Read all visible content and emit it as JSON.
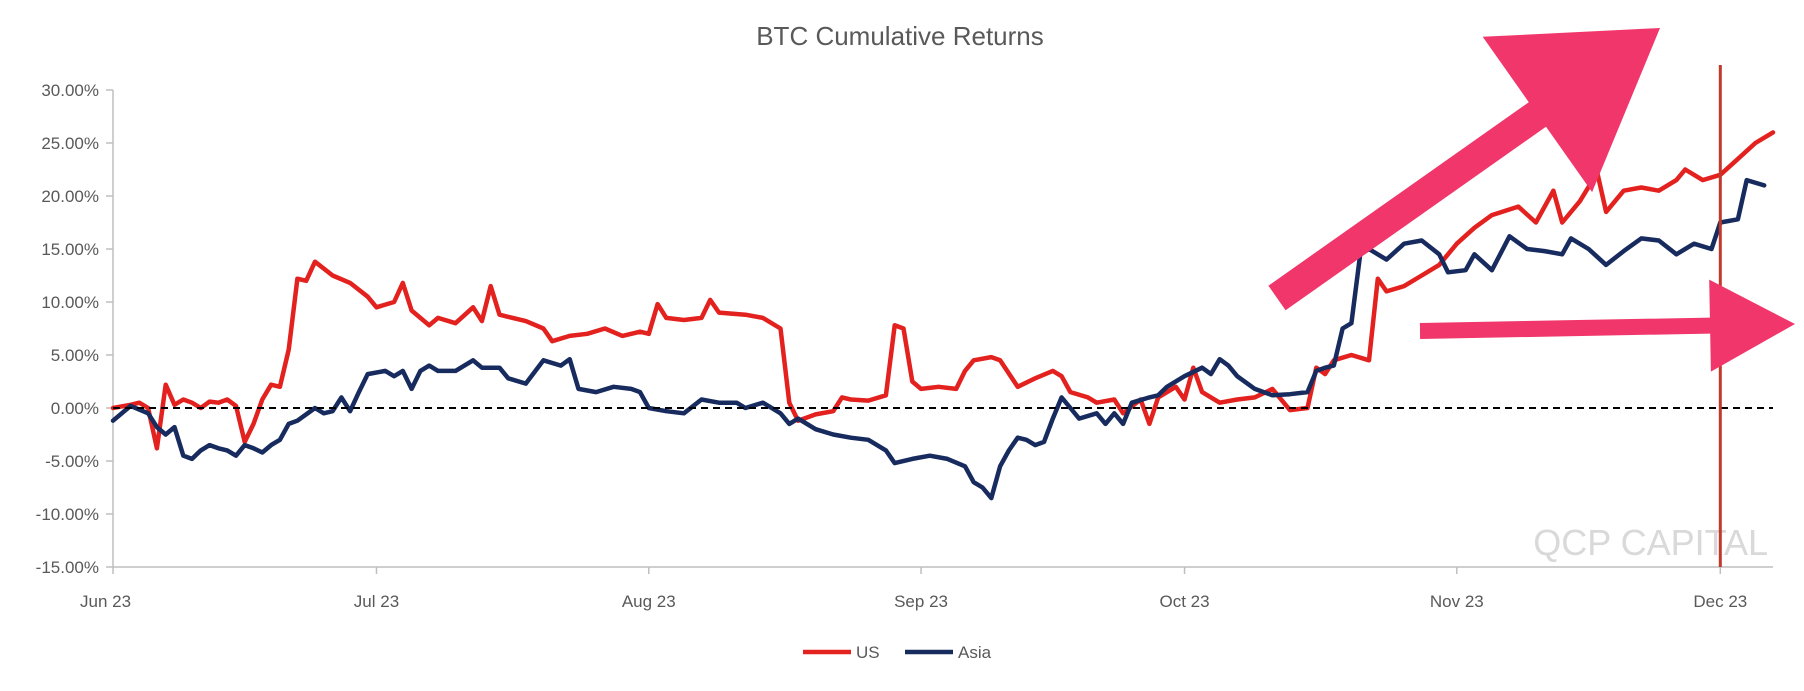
{
  "chart_data": {
    "type": "line",
    "title": "BTC Cumulative Returns",
    "xlabel": "",
    "ylabel": "",
    "xlim": [
      "2023-06-01",
      "2023-12-07"
    ],
    "ylim": [
      -15,
      30
    ],
    "y_ticks": [
      30,
      25,
      20,
      15,
      10,
      5,
      0,
      -5,
      -10,
      -15
    ],
    "y_tick_labels": [
      "30.00%",
      "25.00%",
      "20.00%",
      "15.00%",
      "10.00%",
      "5.00%",
      "0.00%",
      "-5.00%",
      "-10.00%",
      "-15.00%"
    ],
    "x_ticks": [
      "2023-06-01",
      "2023-07-01",
      "2023-08-01",
      "2023-09-01",
      "2023-10-01",
      "2023-11-01",
      "2023-12-01"
    ],
    "x_tick_labels": [
      "Jun 23",
      "Jul 23",
      "Aug 23",
      "Sep 23",
      "Oct 23",
      "Nov 23",
      "Dec 23"
    ],
    "grid": false,
    "legend_position": "bottom",
    "series": [
      {
        "name": "US",
        "color": "#e3211e",
        "points": [
          [
            "2023-06-01",
            0.0
          ],
          [
            "2023-06-03",
            0.3
          ],
          [
            "2023-06-04",
            0.5
          ],
          [
            "2023-06-05",
            0.0
          ],
          [
            "2023-06-06",
            -3.8
          ],
          [
            "2023-06-07",
            2.2
          ],
          [
            "2023-06-08",
            0.3
          ],
          [
            "2023-06-09",
            0.8
          ],
          [
            "2023-06-10",
            0.5
          ],
          [
            "2023-06-11",
            0.0
          ],
          [
            "2023-06-12",
            0.6
          ],
          [
            "2023-06-13",
            0.5
          ],
          [
            "2023-06-14",
            0.8
          ],
          [
            "2023-06-15",
            0.2
          ],
          [
            "2023-06-16",
            -3.2
          ],
          [
            "2023-06-17",
            -1.5
          ],
          [
            "2023-06-18",
            0.8
          ],
          [
            "2023-06-19",
            2.2
          ],
          [
            "2023-06-20",
            2.0
          ],
          [
            "2023-06-21",
            5.5
          ],
          [
            "2023-06-22",
            12.2
          ],
          [
            "2023-06-23",
            12.0
          ],
          [
            "2023-06-24",
            13.8
          ],
          [
            "2023-06-26",
            12.5
          ],
          [
            "2023-06-28",
            11.8
          ],
          [
            "2023-06-30",
            10.5
          ],
          [
            "2023-07-01",
            9.5
          ],
          [
            "2023-07-03",
            10.0
          ],
          [
            "2023-07-04",
            11.8
          ],
          [
            "2023-07-05",
            9.2
          ],
          [
            "2023-07-07",
            7.8
          ],
          [
            "2023-07-08",
            8.5
          ],
          [
            "2023-07-10",
            8.0
          ],
          [
            "2023-07-12",
            9.5
          ],
          [
            "2023-07-13",
            8.2
          ],
          [
            "2023-07-14",
            11.5
          ],
          [
            "2023-07-15",
            8.8
          ],
          [
            "2023-07-18",
            8.2
          ],
          [
            "2023-07-20",
            7.5
          ],
          [
            "2023-07-21",
            6.3
          ],
          [
            "2023-07-23",
            6.8
          ],
          [
            "2023-07-25",
            7.0
          ],
          [
            "2023-07-27",
            7.5
          ],
          [
            "2023-07-29",
            6.8
          ],
          [
            "2023-07-31",
            7.2
          ],
          [
            "2023-08-01",
            7.0
          ],
          [
            "2023-08-02",
            9.8
          ],
          [
            "2023-08-03",
            8.5
          ],
          [
            "2023-08-05",
            8.3
          ],
          [
            "2023-08-07",
            8.5
          ],
          [
            "2023-08-08",
            10.2
          ],
          [
            "2023-08-09",
            9.0
          ],
          [
            "2023-08-12",
            8.8
          ],
          [
            "2023-08-14",
            8.5
          ],
          [
            "2023-08-16",
            7.5
          ],
          [
            "2023-08-17",
            0.5
          ],
          [
            "2023-08-18",
            -1.2
          ],
          [
            "2023-08-20",
            -0.6
          ],
          [
            "2023-08-22",
            -0.3
          ],
          [
            "2023-08-23",
            1.0
          ],
          [
            "2023-08-24",
            0.8
          ],
          [
            "2023-08-26",
            0.7
          ],
          [
            "2023-08-28",
            1.2
          ],
          [
            "2023-08-29",
            7.8
          ],
          [
            "2023-08-30",
            7.5
          ],
          [
            "2023-08-31",
            2.5
          ],
          [
            "2023-09-01",
            1.8
          ],
          [
            "2023-09-03",
            2.0
          ],
          [
            "2023-09-05",
            1.8
          ],
          [
            "2023-09-06",
            3.5
          ],
          [
            "2023-09-07",
            4.5
          ],
          [
            "2023-09-09",
            4.8
          ],
          [
            "2023-09-10",
            4.5
          ],
          [
            "2023-09-12",
            2.0
          ],
          [
            "2023-09-14",
            2.8
          ],
          [
            "2023-09-16",
            3.5
          ],
          [
            "2023-09-17",
            3.0
          ],
          [
            "2023-09-18",
            1.5
          ],
          [
            "2023-09-20",
            1.0
          ],
          [
            "2023-09-21",
            0.5
          ],
          [
            "2023-09-23",
            0.8
          ],
          [
            "2023-09-24",
            -0.5
          ],
          [
            "2023-09-26",
            0.8
          ],
          [
            "2023-09-27",
            -1.5
          ],
          [
            "2023-09-28",
            1.0
          ],
          [
            "2023-09-30",
            2.0
          ],
          [
            "2023-10-01",
            0.8
          ],
          [
            "2023-10-02",
            3.8
          ],
          [
            "2023-10-03",
            1.5
          ],
          [
            "2023-10-05",
            0.5
          ],
          [
            "2023-10-07",
            0.8
          ],
          [
            "2023-10-09",
            1.0
          ],
          [
            "2023-10-11",
            1.8
          ],
          [
            "2023-10-13",
            -0.2
          ],
          [
            "2023-10-15",
            0.0
          ],
          [
            "2023-10-16",
            3.8
          ],
          [
            "2023-10-17",
            3.2
          ],
          [
            "2023-10-18",
            4.5
          ],
          [
            "2023-10-20",
            5.0
          ],
          [
            "2023-10-22",
            4.5
          ],
          [
            "2023-10-23",
            12.2
          ],
          [
            "2023-10-24",
            11.0
          ],
          [
            "2023-10-26",
            11.5
          ],
          [
            "2023-10-28",
            12.5
          ],
          [
            "2023-10-30",
            13.5
          ],
          [
            "2023-11-01",
            15.5
          ],
          [
            "2023-11-03",
            17.0
          ],
          [
            "2023-11-05",
            18.2
          ],
          [
            "2023-11-08",
            19.0
          ],
          [
            "2023-11-10",
            17.5
          ],
          [
            "2023-11-12",
            20.5
          ],
          [
            "2023-11-13",
            17.5
          ],
          [
            "2023-11-15",
            19.5
          ],
          [
            "2023-11-17",
            22.2
          ],
          [
            "2023-11-18",
            18.5
          ],
          [
            "2023-11-20",
            20.5
          ],
          [
            "2023-11-22",
            20.8
          ],
          [
            "2023-11-24",
            20.5
          ],
          [
            "2023-11-26",
            21.5
          ],
          [
            "2023-11-27",
            22.5
          ],
          [
            "2023-11-29",
            21.5
          ],
          [
            "2023-12-01",
            22.0
          ],
          [
            "2023-12-03",
            23.5
          ],
          [
            "2023-12-05",
            25.0
          ],
          [
            "2023-12-07",
            26.0
          ]
        ]
      },
      {
        "name": "Asia",
        "color": "#172b5e",
        "points": [
          [
            "2023-06-01",
            -1.2
          ],
          [
            "2023-06-03",
            0.2
          ],
          [
            "2023-06-05",
            -0.5
          ],
          [
            "2023-06-06",
            -1.8
          ],
          [
            "2023-06-07",
            -2.5
          ],
          [
            "2023-06-08",
            -1.8
          ],
          [
            "2023-06-09",
            -4.5
          ],
          [
            "2023-06-10",
            -4.8
          ],
          [
            "2023-06-11",
            -4.0
          ],
          [
            "2023-06-12",
            -3.5
          ],
          [
            "2023-06-13",
            -3.8
          ],
          [
            "2023-06-14",
            -4.0
          ],
          [
            "2023-06-15",
            -4.5
          ],
          [
            "2023-06-16",
            -3.5
          ],
          [
            "2023-06-17",
            -3.8
          ],
          [
            "2023-06-18",
            -4.2
          ],
          [
            "2023-06-19",
            -3.5
          ],
          [
            "2023-06-20",
            -3.0
          ],
          [
            "2023-06-21",
            -1.5
          ],
          [
            "2023-06-22",
            -1.2
          ],
          [
            "2023-06-24",
            0.0
          ],
          [
            "2023-06-25",
            -0.5
          ],
          [
            "2023-06-26",
            -0.3
          ],
          [
            "2023-06-27",
            1.0
          ],
          [
            "2023-06-28",
            -0.3
          ],
          [
            "2023-06-29",
            1.5
          ],
          [
            "2023-06-30",
            3.2
          ],
          [
            "2023-07-02",
            3.5
          ],
          [
            "2023-07-03",
            3.0
          ],
          [
            "2023-07-04",
            3.5
          ],
          [
            "2023-07-05",
            1.8
          ],
          [
            "2023-07-06",
            3.5
          ],
          [
            "2023-07-07",
            4.0
          ],
          [
            "2023-07-08",
            3.5
          ],
          [
            "2023-07-10",
            3.5
          ],
          [
            "2023-07-12",
            4.5
          ],
          [
            "2023-07-13",
            3.8
          ],
          [
            "2023-07-15",
            3.8
          ],
          [
            "2023-07-16",
            2.8
          ],
          [
            "2023-07-18",
            2.3
          ],
          [
            "2023-07-20",
            4.5
          ],
          [
            "2023-07-22",
            4.0
          ],
          [
            "2023-07-23",
            4.6
          ],
          [
            "2023-07-24",
            1.8
          ],
          [
            "2023-07-26",
            1.5
          ],
          [
            "2023-07-28",
            2.0
          ],
          [
            "2023-07-30",
            1.8
          ],
          [
            "2023-07-31",
            1.5
          ],
          [
            "2023-08-01",
            0.0
          ],
          [
            "2023-08-03",
            -0.3
          ],
          [
            "2023-08-05",
            -0.5
          ],
          [
            "2023-08-07",
            0.8
          ],
          [
            "2023-08-09",
            0.5
          ],
          [
            "2023-08-11",
            0.5
          ],
          [
            "2023-08-12",
            0.0
          ],
          [
            "2023-08-14",
            0.5
          ],
          [
            "2023-08-16",
            -0.5
          ],
          [
            "2023-08-17",
            -1.5
          ],
          [
            "2023-08-18",
            -1.0
          ],
          [
            "2023-08-20",
            -2.0
          ],
          [
            "2023-08-22",
            -2.5
          ],
          [
            "2023-08-24",
            -2.8
          ],
          [
            "2023-08-26",
            -3.0
          ],
          [
            "2023-08-28",
            -4.0
          ],
          [
            "2023-08-29",
            -5.2
          ],
          [
            "2023-08-31",
            -4.8
          ],
          [
            "2023-09-02",
            -4.5
          ],
          [
            "2023-09-04",
            -4.8
          ],
          [
            "2023-09-06",
            -5.5
          ],
          [
            "2023-09-07",
            -7.0
          ],
          [
            "2023-09-08",
            -7.5
          ],
          [
            "2023-09-09",
            -8.5
          ],
          [
            "2023-09-10",
            -5.5
          ],
          [
            "2023-09-11",
            -4.0
          ],
          [
            "2023-09-12",
            -2.8
          ],
          [
            "2023-09-13",
            -3.0
          ],
          [
            "2023-09-14",
            -3.5
          ],
          [
            "2023-09-15",
            -3.2
          ],
          [
            "2023-09-16",
            -1.0
          ],
          [
            "2023-09-17",
            1.0
          ],
          [
            "2023-09-18",
            0.0
          ],
          [
            "2023-09-19",
            -1.0
          ],
          [
            "2023-09-21",
            -0.5
          ],
          [
            "2023-09-22",
            -1.5
          ],
          [
            "2023-09-23",
            -0.5
          ],
          [
            "2023-09-24",
            -1.5
          ],
          [
            "2023-09-25",
            0.5
          ],
          [
            "2023-09-27",
            1.0
          ],
          [
            "2023-09-28",
            1.2
          ],
          [
            "2023-09-29",
            2.0
          ],
          [
            "2023-10-01",
            3.0
          ],
          [
            "2023-10-03",
            3.8
          ],
          [
            "2023-10-04",
            3.2
          ],
          [
            "2023-10-05",
            4.6
          ],
          [
            "2023-10-06",
            4.0
          ],
          [
            "2023-10-07",
            3.0
          ],
          [
            "2023-10-09",
            1.8
          ],
          [
            "2023-10-11",
            1.2
          ],
          [
            "2023-10-13",
            1.3
          ],
          [
            "2023-10-15",
            1.5
          ],
          [
            "2023-10-16",
            3.5
          ],
          [
            "2023-10-17",
            3.8
          ],
          [
            "2023-10-18",
            4.0
          ],
          [
            "2023-10-19",
            7.5
          ],
          [
            "2023-10-20",
            8.0
          ],
          [
            "2023-10-21",
            14.5
          ],
          [
            "2023-10-22",
            15.0
          ],
          [
            "2023-10-24",
            14.0
          ],
          [
            "2023-10-26",
            15.5
          ],
          [
            "2023-10-28",
            15.8
          ],
          [
            "2023-10-30",
            14.5
          ],
          [
            "2023-10-31",
            12.8
          ],
          [
            "2023-11-02",
            13.0
          ],
          [
            "2023-11-03",
            14.5
          ],
          [
            "2023-11-05",
            13.0
          ],
          [
            "2023-11-07",
            16.2
          ],
          [
            "2023-11-09",
            15.0
          ],
          [
            "2023-11-11",
            14.8
          ],
          [
            "2023-11-13",
            14.5
          ],
          [
            "2023-11-14",
            16.0
          ],
          [
            "2023-11-16",
            15.0
          ],
          [
            "2023-11-18",
            13.5
          ],
          [
            "2023-11-20",
            14.8
          ],
          [
            "2023-11-22",
            16.0
          ],
          [
            "2023-11-24",
            15.8
          ],
          [
            "2023-11-26",
            14.5
          ],
          [
            "2023-11-28",
            15.5
          ],
          [
            "2023-11-30",
            15.0
          ],
          [
            "2023-12-01",
            17.5
          ],
          [
            "2023-12-03",
            17.8
          ],
          [
            "2023-12-04",
            21.5
          ],
          [
            "2023-12-06",
            21.0
          ]
        ]
      }
    ],
    "annotations": [
      {
        "type": "zero-line",
        "style": "dashed",
        "color": "#000000"
      },
      {
        "type": "vertical-marker",
        "at": "2023-12-01",
        "color": "#c0392b"
      },
      {
        "type": "arrow",
        "direction": "up-right",
        "color": "#f0366a"
      },
      {
        "type": "arrow",
        "direction": "right",
        "color": "#f0366a"
      }
    ],
    "watermark": "QCP CAPITAL"
  }
}
